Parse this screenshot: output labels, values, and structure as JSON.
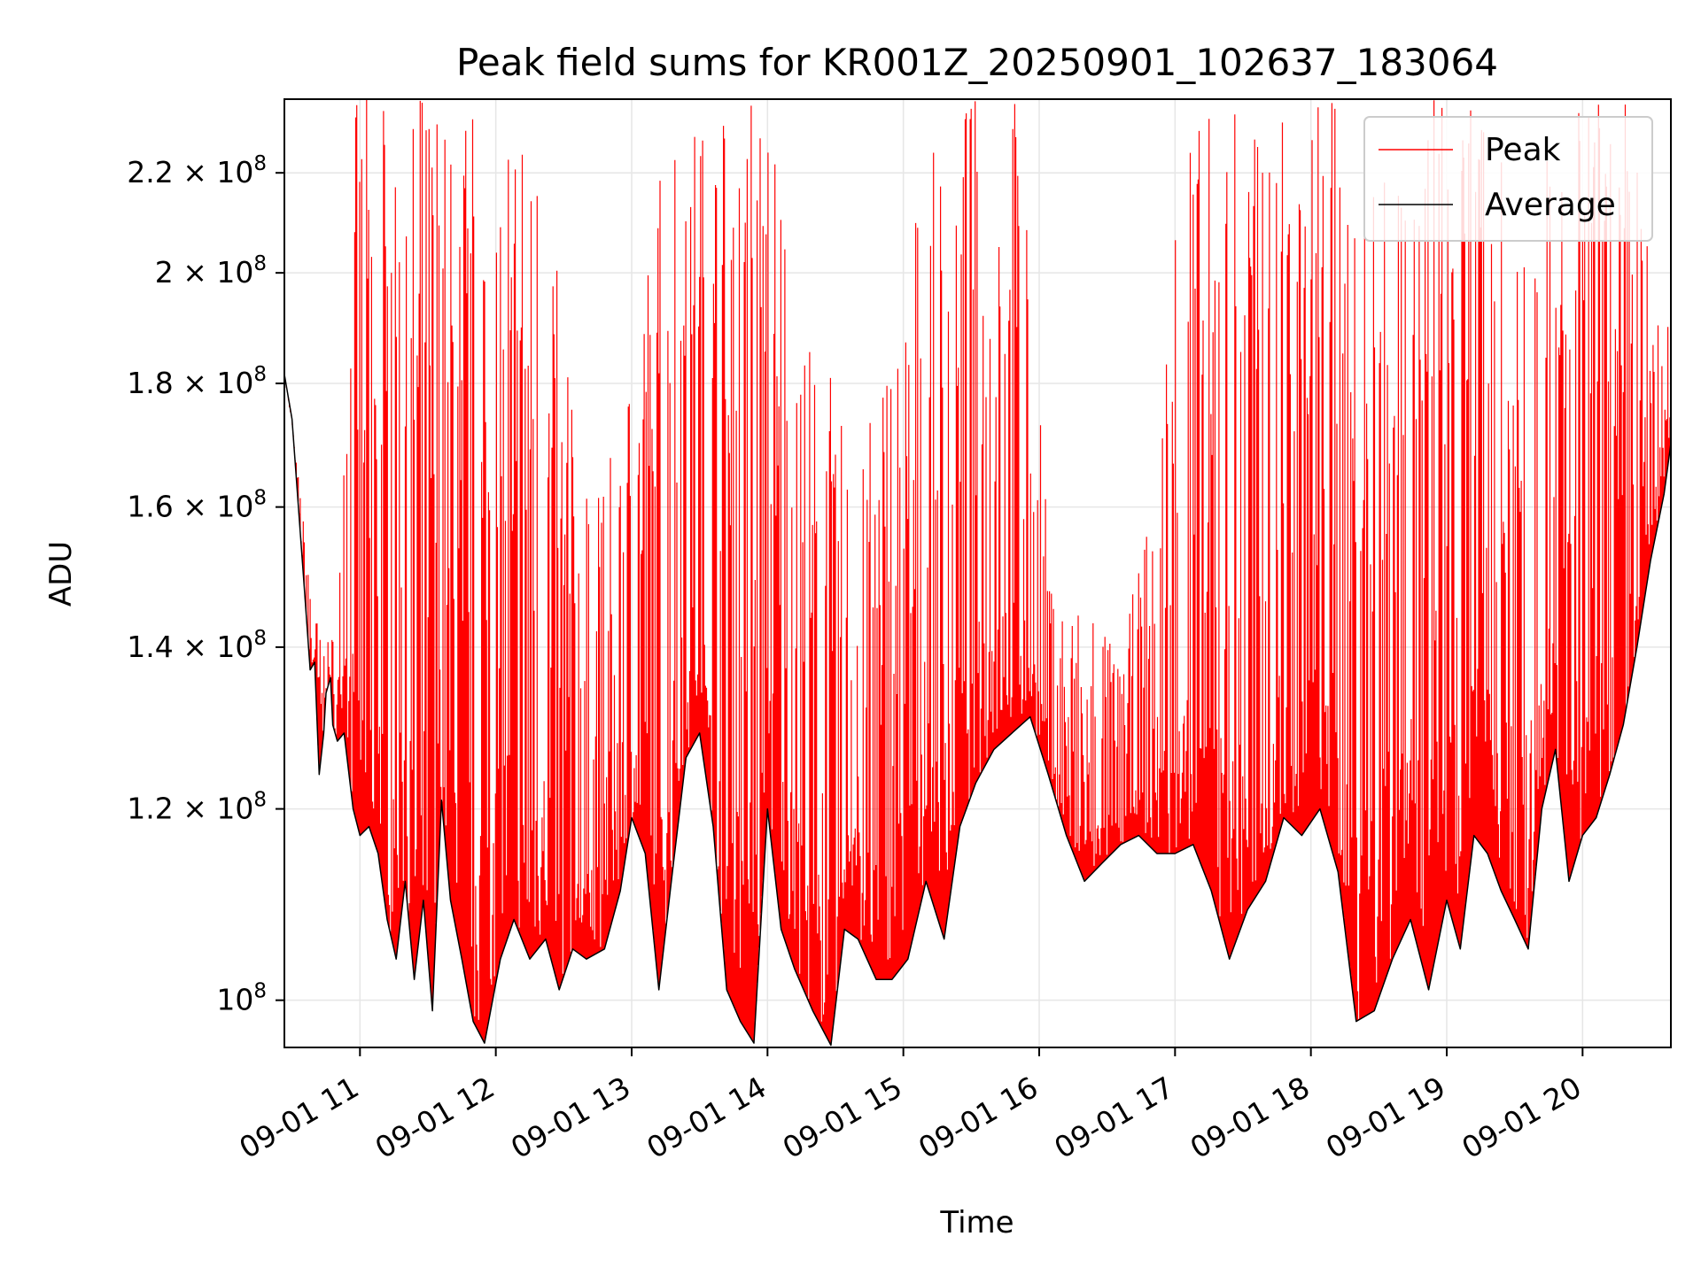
{
  "chart_data": {
    "type": "line",
    "title": "Peak field sums for KR001Z_20250901_102637_183064",
    "xlabel": "Time",
    "ylabel": "ADU",
    "x_range": [
      "2025-09-01 10:26:37",
      "2025-09-01 20:39:00"
    ],
    "ylim": [
      95600000,
      236000000
    ],
    "y_scale": "log",
    "grid": true,
    "legend_placement": "upper right",
    "x_ticks": [
      {
        "x": "2025-09-01 11:00",
        "label": "09-01 11"
      },
      {
        "x": "2025-09-01 12:00",
        "label": "09-01 12"
      },
      {
        "x": "2025-09-01 13:00",
        "label": "09-01 13"
      },
      {
        "x": "2025-09-01 14:00",
        "label": "09-01 14"
      },
      {
        "x": "2025-09-01 15:00",
        "label": "09-01 15"
      },
      {
        "x": "2025-09-01 16:00",
        "label": "09-01 16"
      },
      {
        "x": "2025-09-01 17:00",
        "label": "09-01 17"
      },
      {
        "x": "2025-09-01 18:00",
        "label": "09-01 18"
      },
      {
        "x": "2025-09-01 19:00",
        "label": "09-01 19"
      },
      {
        "x": "2025-09-01 20:00",
        "label": "09-01 20"
      }
    ],
    "y_ticks": [
      {
        "y": 100000000,
        "mantissa": "",
        "exponent": "8"
      },
      {
        "y": 120000000,
        "mantissa": "1.2",
        "exponent": "8"
      },
      {
        "y": 140000000,
        "mantissa": "1.4",
        "exponent": "8"
      },
      {
        "y": 160000000,
        "mantissa": "1.6",
        "exponent": "8"
      },
      {
        "y": 180000000,
        "mantissa": "1.8",
        "exponent": "8"
      },
      {
        "y": 200000000,
        "mantissa": "2",
        "exponent": "8"
      },
      {
        "y": 220000000,
        "mantissa": "2.2",
        "exponent": "8"
      }
    ],
    "series": [
      {
        "name": "Average",
        "color": "#000000",
        "x": [
          "2025-09-01 10:26",
          "2025-09-01 10:30",
          "2025-09-01 10:35",
          "2025-09-01 10:38",
          "2025-09-01 10:40",
          "2025-09-01 10:42",
          "2025-09-01 10:44",
          "2025-09-01 10:45",
          "2025-09-01 10:47",
          "2025-09-01 10:48",
          "2025-09-01 10:50",
          "2025-09-01 10:53",
          "2025-09-01 10:57",
          "2025-09-01 11:00",
          "2025-09-01 11:04",
          "2025-09-01 11:08",
          "2025-09-01 11:12",
          "2025-09-01 11:16",
          "2025-09-01 11:20",
          "2025-09-01 11:24",
          "2025-09-01 11:28",
          "2025-09-01 11:32",
          "2025-09-01 11:36",
          "2025-09-01 11:40",
          "2025-09-01 11:45",
          "2025-09-01 11:50",
          "2025-09-01 11:55",
          "2025-09-01 12:02",
          "2025-09-01 12:08",
          "2025-09-01 12:15",
          "2025-09-01 12:22",
          "2025-09-01 12:28",
          "2025-09-01 12:34",
          "2025-09-01 12:40",
          "2025-09-01 12:48",
          "2025-09-01 12:55",
          "2025-09-01 13:00",
          "2025-09-01 13:06",
          "2025-09-01 13:12",
          "2025-09-01 13:18",
          "2025-09-01 13:24",
          "2025-09-01 13:30",
          "2025-09-01 13:36",
          "2025-09-01 13:42",
          "2025-09-01 13:48",
          "2025-09-01 13:54",
          "2025-09-01 14:00",
          "2025-09-01 14:06",
          "2025-09-01 14:12",
          "2025-09-01 14:20",
          "2025-09-01 14:28",
          "2025-09-01 14:34",
          "2025-09-01 14:40",
          "2025-09-01 14:48",
          "2025-09-01 14:55",
          "2025-09-01 15:02",
          "2025-09-01 15:10",
          "2025-09-01 15:18",
          "2025-09-01 15:25",
          "2025-09-01 15:32",
          "2025-09-01 15:40",
          "2025-09-01 15:48",
          "2025-09-01 15:56",
          "2025-09-01 16:04",
          "2025-09-01 16:12",
          "2025-09-01 16:20",
          "2025-09-01 16:28",
          "2025-09-01 16:36",
          "2025-09-01 16:44",
          "2025-09-01 16:52",
          "2025-09-01 17:00",
          "2025-09-01 17:08",
          "2025-09-01 17:16",
          "2025-09-01 17:24",
          "2025-09-01 17:32",
          "2025-09-01 17:40",
          "2025-09-01 17:48",
          "2025-09-01 17:56",
          "2025-09-01 18:04",
          "2025-09-01 18:12",
          "2025-09-01 18:20",
          "2025-09-01 18:28",
          "2025-09-01 18:36",
          "2025-09-01 18:44",
          "2025-09-01 18:52",
          "2025-09-01 19:00",
          "2025-09-01 19:06",
          "2025-09-01 19:12",
          "2025-09-01 19:18",
          "2025-09-01 19:24",
          "2025-09-01 19:30",
          "2025-09-01 19:36",
          "2025-09-01 19:42",
          "2025-09-01 19:48",
          "2025-09-01 19:54",
          "2025-09-01 20:00",
          "2025-09-01 20:06",
          "2025-09-01 20:12",
          "2025-09-01 20:18",
          "2025-09-01 20:24",
          "2025-09-01 20:30",
          "2025-09-01 20:36",
          "2025-09-01 20:39"
        ],
        "y": [
          183000000,
          174000000,
          150000000,
          137000000,
          138000000,
          124000000,
          129000000,
          134000000,
          136000000,
          130000000,
          128000000,
          129000000,
          120000000,
          117000000,
          118000000,
          115000000,
          108000000,
          104000000,
          112000000,
          102000000,
          110000000,
          99000000,
          121000000,
          110000000,
          104000000,
          98000000,
          96000000,
          104000000,
          108000000,
          104000000,
          106000000,
          101000000,
          105000000,
          104000000,
          105000000,
          111000000,
          119000000,
          115000000,
          101000000,
          113000000,
          126000000,
          129000000,
          118000000,
          101000000,
          98000000,
          96000000,
          120000000,
          107000000,
          103000000,
          99000000,
          95800000,
          107000000,
          106000000,
          102000000,
          102000000,
          104000000,
          112000000,
          106000000,
          118000000,
          123000000,
          127000000,
          129000000,
          131000000,
          124000000,
          117000000,
          112000000,
          114000000,
          116000000,
          117000000,
          115000000,
          115000000,
          116000000,
          111000000,
          104000000,
          109000000,
          112000000,
          119000000,
          117000000,
          120000000,
          113000000,
          98000000,
          99000000,
          104000000,
          108000000,
          101000000,
          110000000,
          105000000,
          117000000,
          115000000,
          111000000,
          108000000,
          105000000,
          120000000,
          127000000,
          112000000,
          117000000,
          119000000,
          124000000,
          130000000,
          140000000,
          152000000,
          162000000,
          170000000
        ]
      },
      {
        "name": "Peak",
        "color": "#ff0000",
        "upper_envelope": {
          "x": [
            "2025-09-01 10:26",
            "2025-09-01 10:40",
            "2025-09-01 10:50",
            "2025-09-01 10:57",
            "2025-09-01 11:10",
            "2025-09-01 11:30",
            "2025-09-01 11:45",
            "2025-09-01 12:00",
            "2025-09-01 12:20",
            "2025-09-01 12:40",
            "2025-09-01 12:55",
            "2025-09-01 13:05",
            "2025-09-01 13:18",
            "2025-09-01 13:30",
            "2025-09-01 13:45",
            "2025-09-01 14:00",
            "2025-09-01 14:15",
            "2025-09-01 14:30",
            "2025-09-01 14:45",
            "2025-09-01 14:55",
            "2025-09-01 15:05",
            "2025-09-01 15:20",
            "2025-09-01 15:35",
            "2025-09-01 15:50",
            "2025-09-01 16:05",
            "2025-09-01 16:20",
            "2025-09-01 16:35",
            "2025-09-01 16:50",
            "2025-09-01 17:05",
            "2025-09-01 17:20",
            "2025-09-01 17:35",
            "2025-09-01 17:50",
            "2025-09-01 18:05",
            "2025-09-01 18:20",
            "2025-09-01 18:35",
            "2025-09-01 18:50",
            "2025-09-01 19:05",
            "2025-09-01 19:20",
            "2025-09-01 19:35",
            "2025-09-01 19:50",
            "2025-09-01 20:05",
            "2025-09-01 20:20",
            "2025-09-01 20:35"
          ],
          "y": [
            183000000,
            145000000,
            140000000,
            236000000,
            236000000,
            236000000,
            236000000,
            236000000,
            225000000,
            162000000,
            170000000,
            200000000,
            236000000,
            236000000,
            236000000,
            236000000,
            190000000,
            180000000,
            175000000,
            190000000,
            210000000,
            236000000,
            236000000,
            236000000,
            150000000,
            145000000,
            140000000,
            160000000,
            230000000,
            236000000,
            236000000,
            236000000,
            236000000,
            236000000,
            236000000,
            236000000,
            236000000,
            236000000,
            236000000,
            236000000,
            236000000,
            236000000,
            190000000
          ]
        }
      }
    ]
  }
}
